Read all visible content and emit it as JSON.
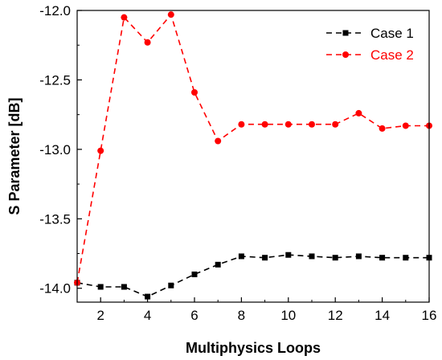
{
  "chart_data": {
    "type": "line",
    "xlabel": "Multiphysics Loops",
    "ylabel": "S Parameter [dB]",
    "xlim": [
      1,
      16
    ],
    "ylim": [
      -14.1,
      -12.0
    ],
    "xticks": [
      2,
      4,
      6,
      8,
      10,
      12,
      14,
      16
    ],
    "yticks": [
      -14.0,
      -13.5,
      -13.0,
      -12.5,
      -12.0
    ],
    "ytick_labels": [
      "-14.0",
      "-13.5",
      "-13.0",
      "-12.5",
      "-12.0"
    ],
    "legend_position": "top-right",
    "grid": false,
    "series": [
      {
        "name": "Case 1",
        "color": "#000000",
        "marker": "square",
        "line_style": "dashed",
        "x": [
          1,
          2,
          3,
          4,
          5,
          6,
          7,
          8,
          9,
          10,
          11,
          12,
          13,
          14,
          15,
          16
        ],
        "values": [
          -13.96,
          -13.99,
          -13.99,
          -14.06,
          -13.98,
          -13.9,
          -13.83,
          -13.77,
          -13.78,
          -13.76,
          -13.77,
          -13.78,
          -13.77,
          -13.78,
          -13.78,
          -13.78
        ]
      },
      {
        "name": "Case 2",
        "color": "#ff0000",
        "marker": "circle",
        "line_style": "dashed",
        "x": [
          1,
          2,
          3,
          4,
          5,
          6,
          7,
          8,
          9,
          10,
          11,
          12,
          13,
          14,
          15,
          16
        ],
        "values": [
          -13.96,
          -13.01,
          -12.05,
          -12.23,
          -12.03,
          -12.59,
          -12.94,
          -12.82,
          -12.82,
          -12.82,
          -12.82,
          -12.82,
          -12.74,
          -12.85,
          -12.83,
          -12.83
        ]
      }
    ]
  }
}
